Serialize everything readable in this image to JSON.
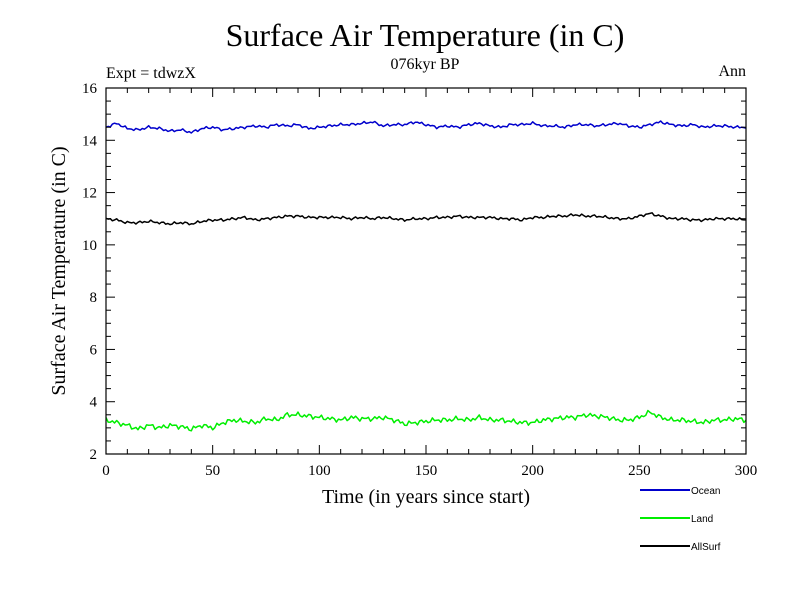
{
  "chart_data": {
    "type": "line",
    "title": "Surface Air Temperature (in C)",
    "subtitle_left": "Expt = tdwzX",
    "subtitle_center": "076kyr BP",
    "subtitle_right": "Ann",
    "xlabel": "Time (in years since start)",
    "ylabel": "Surface Air Temperature (in C)",
    "xlim": [
      0,
      300
    ],
    "ylim": [
      2,
      16
    ],
    "xticks": [
      0,
      50,
      100,
      150,
      200,
      250,
      300
    ],
    "yticks": [
      2,
      4,
      6,
      8,
      10,
      12,
      14,
      16
    ],
    "grid": false,
    "legend_position": "bottom-right",
    "series": [
      {
        "name": "Ocean",
        "color": "#0000cc",
        "mean": 14.55,
        "values": [
          14.5,
          14.65,
          14.45,
          14.4,
          14.5,
          14.45,
          14.35,
          14.4,
          14.3,
          14.45,
          14.5,
          14.4,
          14.45,
          14.5,
          14.55,
          14.5,
          14.6,
          14.55,
          14.6,
          14.45,
          14.5,
          14.55,
          14.6,
          14.6,
          14.65,
          14.7,
          14.55,
          14.6,
          14.6,
          14.7,
          14.6,
          14.5,
          14.55,
          14.5,
          14.6,
          14.65,
          14.55,
          14.5,
          14.6,
          14.6,
          14.65,
          14.55,
          14.55,
          14.5,
          14.6,
          14.6,
          14.55,
          14.6,
          14.65,
          14.55,
          14.5,
          14.6,
          14.7,
          14.6,
          14.55,
          14.6,
          14.5,
          14.55,
          14.55,
          14.5,
          14.5
        ]
      },
      {
        "name": "Land",
        "color": "#00ee00",
        "mean": 3.25,
        "values": [
          3.3,
          3.2,
          3.1,
          2.95,
          3.1,
          3.0,
          3.1,
          3.05,
          2.95,
          3.1,
          3.0,
          3.2,
          3.3,
          3.25,
          3.2,
          3.35,
          3.3,
          3.5,
          3.5,
          3.45,
          3.4,
          3.35,
          3.3,
          3.4,
          3.35,
          3.35,
          3.4,
          3.3,
          3.15,
          3.2,
          3.25,
          3.3,
          3.3,
          3.35,
          3.3,
          3.4,
          3.3,
          3.3,
          3.25,
          3.2,
          3.2,
          3.3,
          3.35,
          3.4,
          3.4,
          3.5,
          3.45,
          3.4,
          3.3,
          3.3,
          3.4,
          3.6,
          3.4,
          3.3,
          3.3,
          3.25,
          3.2,
          3.3,
          3.3,
          3.35,
          3.3
        ]
      },
      {
        "name": "AllSurf",
        "color": "#000000",
        "mean": 10.95,
        "values": [
          11.0,
          10.95,
          10.85,
          10.85,
          10.9,
          10.85,
          10.8,
          10.85,
          10.8,
          10.9,
          10.95,
          10.95,
          11.0,
          11.05,
          10.95,
          11.0,
          11.05,
          11.1,
          11.1,
          11.05,
          11.05,
          11.05,
          11.05,
          11.0,
          11.05,
          11.0,
          11.05,
          11.0,
          10.95,
          11.0,
          11.0,
          11.05,
          11.05,
          11.1,
          11.05,
          11.05,
          11.05,
          11.0,
          11.0,
          10.95,
          11.05,
          11.05,
          11.1,
          11.1,
          11.15,
          11.1,
          11.1,
          11.05,
          11.0,
          11.0,
          11.1,
          11.2,
          11.1,
          11.0,
          11.0,
          10.95,
          10.95,
          11.0,
          11.0,
          11.0,
          10.95
        ]
      }
    ]
  }
}
